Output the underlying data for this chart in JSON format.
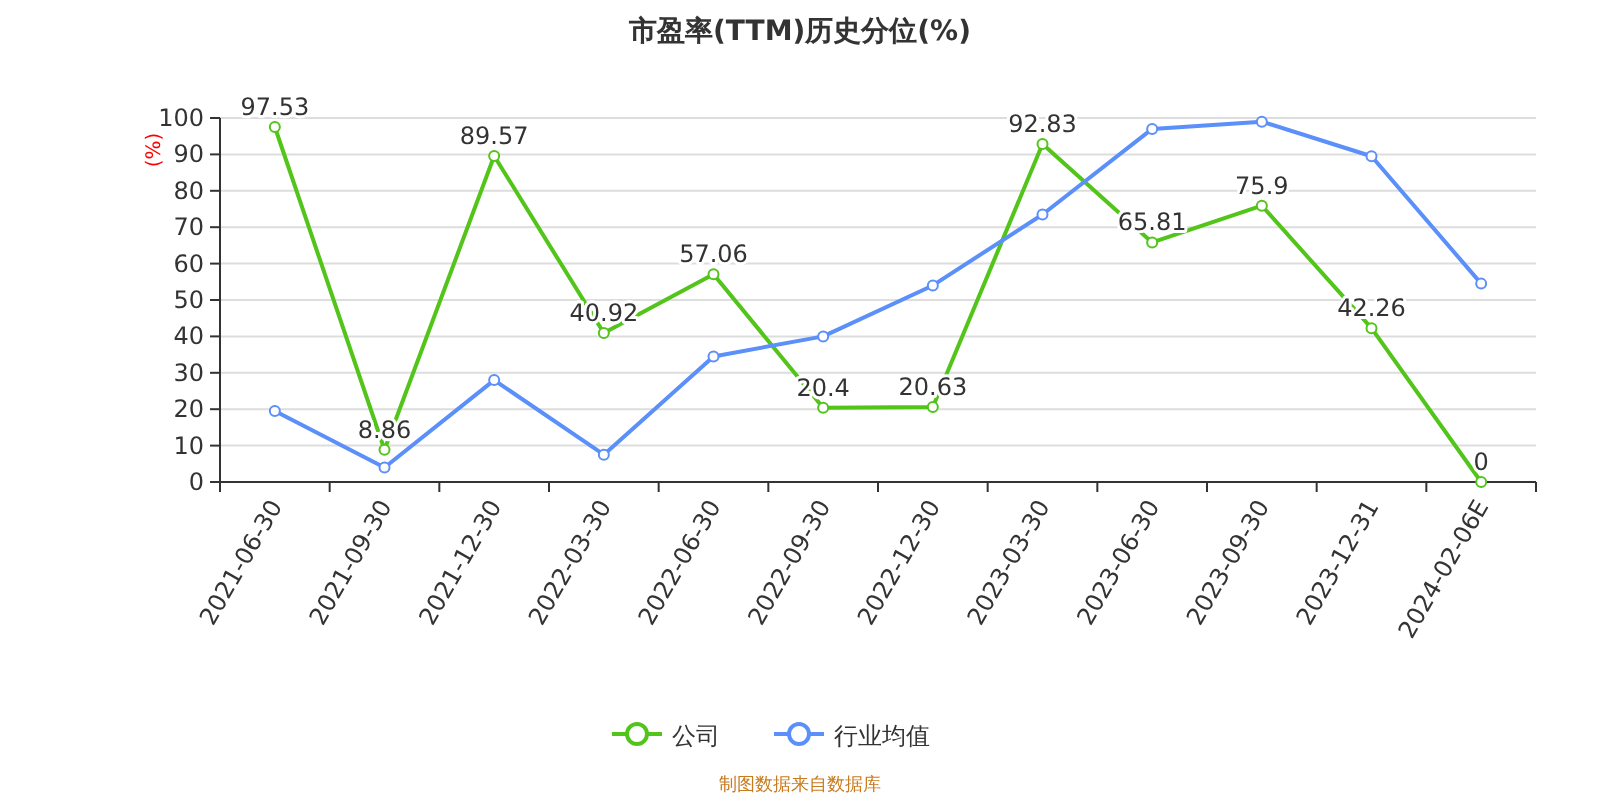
{
  "chart_data": {
    "type": "line",
    "title": "市盈率(TTM)历史分位(%)",
    "ylabel": "(%)",
    "categories": [
      "2021-06-30",
      "2021-09-30",
      "2021-12-30",
      "2022-03-30",
      "2022-06-30",
      "2022-09-30",
      "2022-12-30",
      "2023-03-30",
      "2023-06-30",
      "2023-09-30",
      "2023-12-31",
      "2024-02-06E"
    ],
    "series": [
      {
        "name": "公司",
        "color": "#52c41a",
        "values": [
          97.53,
          8.86,
          89.57,
          40.92,
          57.06,
          20.4,
          20.63,
          92.83,
          65.81,
          75.9,
          42.26,
          0
        ],
        "data_labels": true
      },
      {
        "name": "行业均值",
        "color": "#5b8ff9",
        "values": [
          19.5,
          4,
          28,
          7.5,
          34.5,
          40,
          54,
          73.5,
          97,
          99,
          89.5,
          54.5
        ]
      }
    ],
    "ylim": [
      0,
      100
    ],
    "yticks": [
      0,
      10,
      20,
      30,
      40,
      50,
      60,
      70,
      80,
      90,
      100
    ],
    "grid": "y",
    "legend": "bottom",
    "marker": "circle",
    "line_style": "solid",
    "annotations": [
      "制图数据来自数据库"
    ]
  }
}
